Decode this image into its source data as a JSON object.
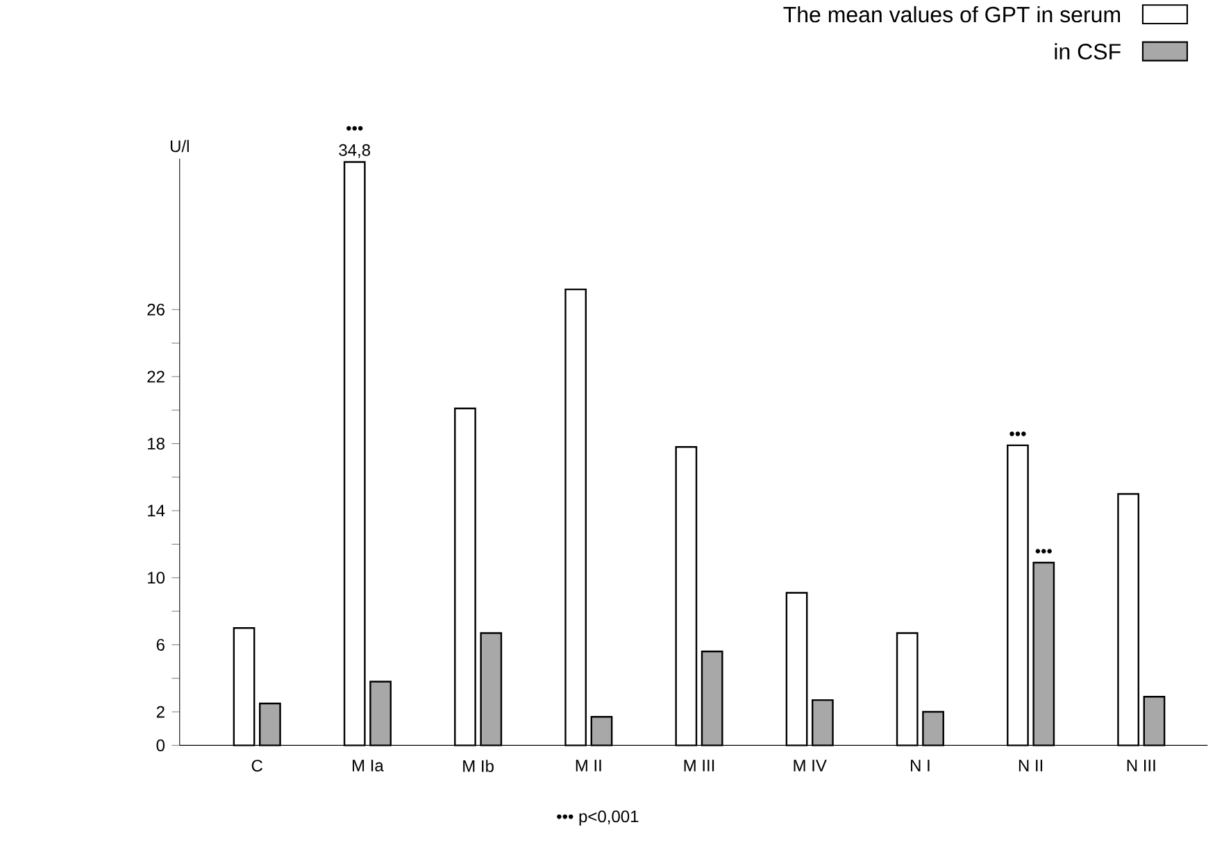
{
  "chart_data": {
    "type": "bar",
    "legend_title": "The mean values of GPT",
    "ylabel": "U/l",
    "categories": [
      "C",
      "M Ia",
      "M Ib",
      "M II",
      "M III",
      "M IV",
      "N I",
      "N II",
      "N III"
    ],
    "series": [
      {
        "name": "in serum",
        "color": "#ffffff",
        "values": [
          7.0,
          34.8,
          20.1,
          27.2,
          17.8,
          9.1,
          6.7,
          17.9,
          15.0
        ],
        "value_labels": [
          null,
          "34,8",
          null,
          null,
          null,
          null,
          null,
          null,
          null
        ]
      },
      {
        "name": "in CSF",
        "color": "#a8a8a8",
        "values": [
          2.5,
          3.8,
          6.7,
          1.7,
          5.6,
          2.7,
          2.0,
          10.9,
          2.9
        ]
      }
    ],
    "ylim": [
      0,
      35
    ],
    "yticks": [
      0,
      2,
      {
        "value": 4,
        "label": null
      },
      6,
      {
        "value": 8,
        "label": null
      },
      10,
      {
        "value": 12,
        "label": null
      },
      14,
      {
        "value": 16,
        "label": null
      },
      18,
      {
        "value": 20,
        "label": null
      },
      22,
      {
        "value": 24,
        "label": null
      },
      26
    ],
    "legend": "top right",
    "annotations": [
      {
        "text": "•••",
        "x": "M Ia",
        "y": 34.8
      },
      {
        "text": "•••",
        "x": "N II",
        "y": 17.9
      },
      {
        "text": "•••",
        "x": "N II",
        "y": 10.9
      },
      "••• p<0,001"
    ]
  }
}
